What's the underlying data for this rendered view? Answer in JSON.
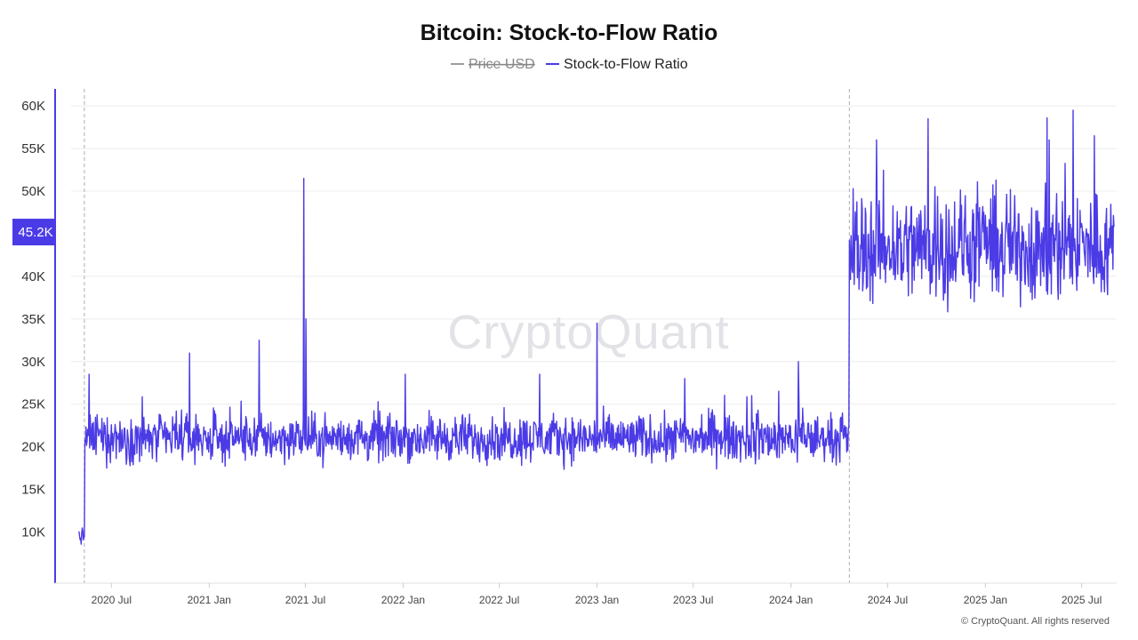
{
  "chart_data": {
    "type": "line",
    "title": "Bitcoin: Stock-to-Flow Ratio",
    "legend": [
      {
        "name": "Price USD",
        "color": "#9e9e9e",
        "visible": false
      },
      {
        "name": "Stock-to-Flow Ratio",
        "color": "#4b3be6",
        "visible": true
      }
    ],
    "legend_placement": "top-center",
    "y_ticks": [
      "60K",
      "55K",
      "50K",
      "40K",
      "35K",
      "30K",
      "25K",
      "20K",
      "15K",
      "10K"
    ],
    "y_tick_values": [
      60000,
      55000,
      50000,
      40000,
      35000,
      30000,
      25000,
      20000,
      15000,
      10000
    ],
    "ylim": [
      4000,
      62000
    ],
    "x_ticks": [
      "2020 Jul",
      "2021 Jan",
      "2021 Jul",
      "2022 Jan",
      "2022 Jul",
      "2023 Jan",
      "2023 Jul",
      "2024 Jan",
      "2024 Jul",
      "2025 Jan",
      "2025 Jul"
    ],
    "x_tick_dates": [
      "2020-07-01",
      "2021-01-01",
      "2021-07-01",
      "2022-01-01",
      "2022-07-01",
      "2023-01-01",
      "2023-07-01",
      "2024-01-01",
      "2024-07-01",
      "2025-01-01",
      "2025-07-01"
    ],
    "xlim": [
      "2020-03-17",
      "2025-09-05"
    ],
    "current_value_label": "45.2K",
    "current_value": 45200,
    "halving_markers": [
      "2020-05-11",
      "2024-04-20"
    ],
    "series": [
      {
        "name": "Stock-to-Flow Ratio",
        "segments": [
          {
            "start": "2020-05-01",
            "end": "2020-05-11",
            "base": 9500,
            "noise": 800,
            "spikes": []
          },
          {
            "start": "2020-05-12",
            "end": "2024-04-19",
            "base": 21000,
            "noise": 1900,
            "spikes": [
              {
                "date": "2020-05-20",
                "value": 28500
              },
              {
                "date": "2020-11-25",
                "value": 31000
              },
              {
                "date": "2021-04-05",
                "value": 32500
              },
              {
                "date": "2021-06-28",
                "value": 51500
              },
              {
                "date": "2021-07-02",
                "value": 35000
              },
              {
                "date": "2022-01-05",
                "value": 28500
              },
              {
                "date": "2022-09-15",
                "value": 28500
              },
              {
                "date": "2023-01-01",
                "value": 34500
              },
              {
                "date": "2023-06-15",
                "value": 28000
              },
              {
                "date": "2024-01-15",
                "value": 30000
              }
            ]
          },
          {
            "start": "2024-04-20",
            "end": "2025-08-31",
            "base": 43500,
            "noise": 4500,
            "spikes": [
              {
                "date": "2024-06-10",
                "value": 56000
              },
              {
                "date": "2024-09-15",
                "value": 58500
              },
              {
                "date": "2025-05-01",
                "value": 56000
              },
              {
                "date": "2025-06-15",
                "value": 59500
              },
              {
                "date": "2025-07-25",
                "value": 56500
              }
            ]
          }
        ]
      }
    ]
  },
  "watermark": "CryptoQuant",
  "copyright": "© CryptoQuant. All rights reserved"
}
